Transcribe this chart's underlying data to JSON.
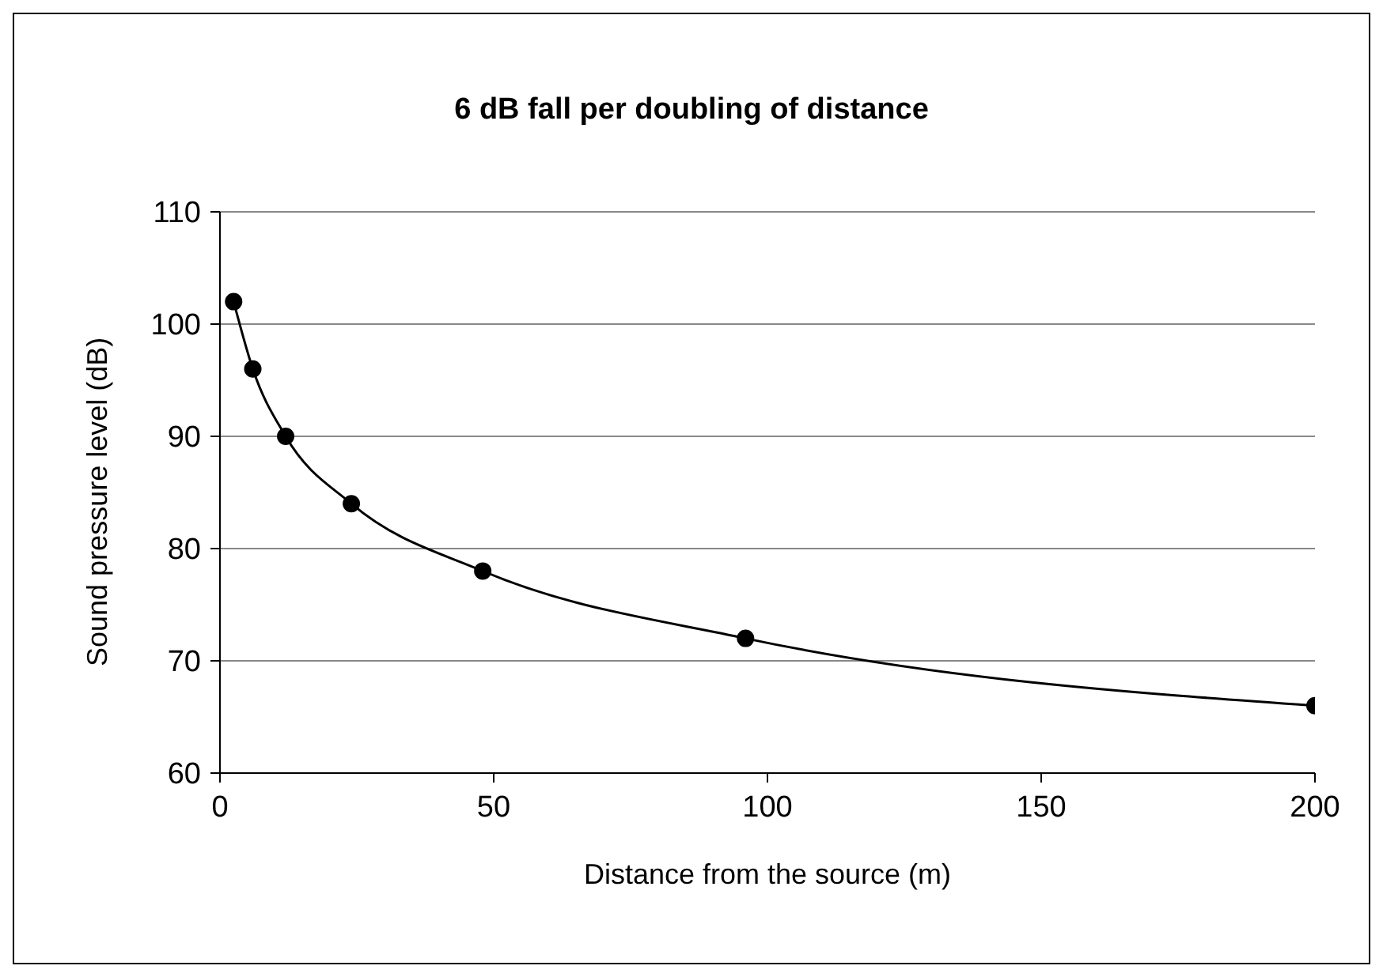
{
  "chart_data": {
    "type": "line",
    "title": "6 dB fall per doubling of distance",
    "xlabel": "Distance from the source (m)",
    "ylabel": "Sound pressure level (dB)",
    "x": [
      2.5,
      6,
      12,
      24,
      48,
      96,
      200
    ],
    "series": [
      {
        "color": "#000000",
        "values": [
          102,
          96,
          90,
          84,
          78,
          72,
          66
        ]
      }
    ],
    "xlim": [
      0,
      200
    ],
    "xticks": [
      0,
      50,
      100,
      150,
      200
    ],
    "ylim": [
      60,
      110
    ],
    "yticks": [
      60,
      70,
      80,
      90,
      100,
      110
    ],
    "grid": "y",
    "marker": "circle",
    "line_style": "solid",
    "legend": false
  }
}
